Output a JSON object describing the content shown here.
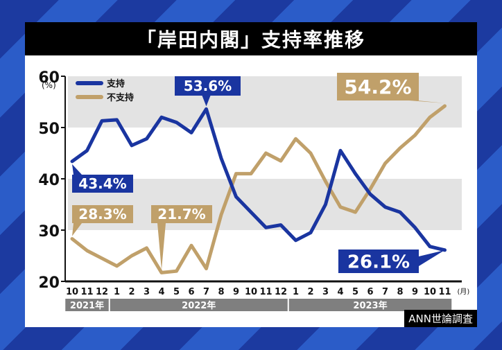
{
  "title": "「岸田内閣」支持率推移",
  "source": "ANN世論調査",
  "colors": {
    "support": "#1a35a0",
    "nonsupport": "#c0a06a",
    "band": "#e3e3e3",
    "year_bar": "#7f7f7f"
  },
  "chart_data": {
    "type": "line",
    "title": "「岸田内閣」支持率推移",
    "xlabel": "(月)",
    "ylabel": "(%)",
    "ylim": [
      20,
      60
    ],
    "yticks": [
      20,
      30,
      40,
      50,
      60
    ],
    "grid": "alternating bands",
    "legend_position": "top-left",
    "x": [
      "2021-10",
      "2021-11",
      "2021-12",
      "2022-1",
      "2022-2",
      "2022-3",
      "2022-4",
      "2022-5",
      "2022-6",
      "2022-7",
      "2022-8",
      "2022-9",
      "2022-10",
      "2022-11",
      "2022-12",
      "2023-1",
      "2023-2",
      "2023-3",
      "2023-4",
      "2023-5",
      "2023-6",
      "2023-7",
      "2023-8",
      "2023-9",
      "2023-10",
      "2023-11"
    ],
    "month_labels": [
      "10",
      "11",
      "12",
      "1",
      "2",
      "3",
      "4",
      "5",
      "6",
      "7",
      "8",
      "9",
      "10",
      "11",
      "12",
      "1",
      "2",
      "3",
      "4",
      "5",
      "6",
      "7",
      "8",
      "9",
      "10",
      "11"
    ],
    "years": [
      {
        "label": "2021年",
        "span": 3
      },
      {
        "label": "2022年",
        "span": 12
      },
      {
        "label": "2023年",
        "span": 11
      }
    ],
    "series": [
      {
        "name": "支持",
        "values": [
          43.4,
          45.5,
          51.3,
          51.5,
          46.5,
          47.8,
          52.0,
          51.0,
          49.0,
          53.6,
          44.0,
          36.5,
          33.5,
          30.5,
          31.0,
          28.0,
          29.5,
          35.0,
          45.5,
          41.0,
          37.0,
          34.5,
          33.5,
          30.5,
          26.8,
          26.1
        ]
      },
      {
        "name": "不支持",
        "values": [
          28.3,
          26.0,
          24.5,
          23.0,
          25.0,
          26.5,
          21.7,
          22.0,
          27.0,
          22.5,
          33.0,
          41.0,
          41.0,
          45.0,
          43.5,
          47.8,
          45.0,
          39.5,
          34.5,
          33.5,
          38.0,
          43.0,
          46.0,
          48.5,
          52.0,
          54.2
        ]
      }
    ],
    "annotations": [
      {
        "series": "支持",
        "index": 0,
        "label": "43.4%"
      },
      {
        "series": "支持",
        "index": 9,
        "label": "53.6%"
      },
      {
        "series": "支持",
        "index": 25,
        "label": "26.1%"
      },
      {
        "series": "不支持",
        "index": 0,
        "label": "28.3%"
      },
      {
        "series": "不支持",
        "index": 6,
        "label": "21.7%"
      },
      {
        "series": "不支持",
        "index": 25,
        "label": "54.2%"
      }
    ]
  }
}
